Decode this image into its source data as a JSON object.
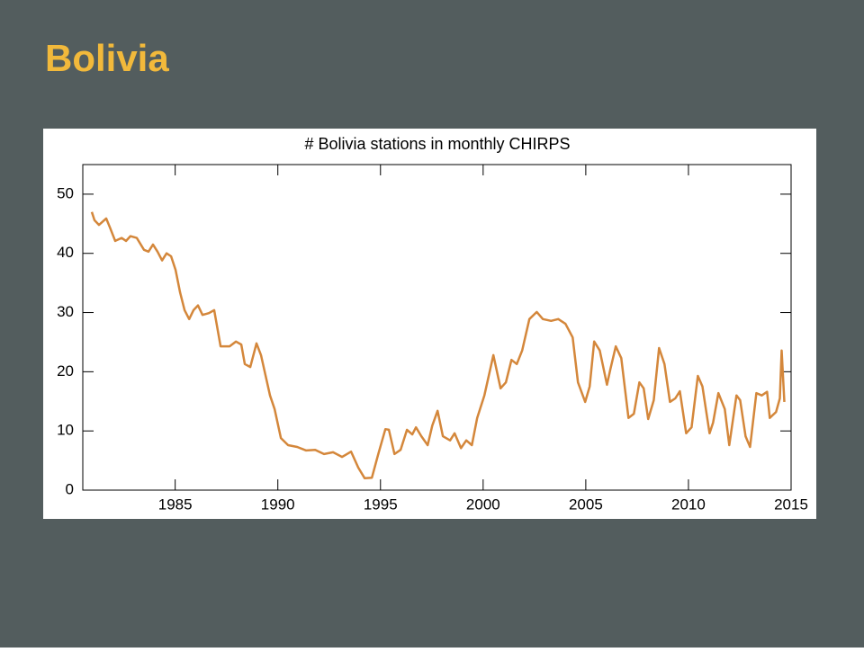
{
  "page_title": "Bolivia",
  "chart_data": {
    "type": "line",
    "title": "# Bolivia stations in monthly CHIRPS",
    "xlim": [
      1980.5,
      2015
    ],
    "xticks": [
      1985,
      1990,
      1995,
      2000,
      2005,
      2010,
      2015
    ],
    "ylim": [
      0,
      55
    ],
    "yticks": [
      0,
      10,
      20,
      30,
      40,
      50
    ],
    "series": [
      {
        "color": "#d4873b",
        "x": [
          1980.94,
          1981.07,
          1981.29,
          1981.64,
          1981.82,
          1982.08,
          1982.39,
          1982.61,
          1982.82,
          1983.13,
          1983.48,
          1983.7,
          1983.92,
          1984.14,
          1984.36,
          1984.58,
          1984.8,
          1985.02,
          1985.24,
          1985.46,
          1985.68,
          1985.89,
          1986.11,
          1986.33,
          1986.64,
          1986.9,
          1987.21,
          1987.65,
          1987.96,
          1988.22,
          1988.39,
          1988.66,
          1988.96,
          1989.18,
          1989.62,
          1989.84,
          1990.15,
          1990.5,
          1990.94,
          1991.38,
          1991.82,
          1992.25,
          1992.69,
          1993.13,
          1993.57,
          1993.92,
          1994.23,
          1994.58,
          1994.89,
          1995.24,
          1995.41,
          1995.68,
          1995.98,
          1996.29,
          1996.55,
          1996.73,
          1996.99,
          1997.3,
          1997.52,
          1997.78,
          1998.04,
          1998.39,
          1998.61,
          1998.92,
          1999.18,
          1999.45,
          1999.71,
          2000.06,
          2000.5,
          2000.85,
          2001.11,
          2001.38,
          2001.64,
          2001.9,
          2002.25,
          2002.61,
          2002.91,
          2003.31,
          2003.66,
          2004.01,
          2004.36,
          2004.62,
          2004.97,
          2005.19,
          2005.41,
          2005.68,
          2006.03,
          2006.2,
          2006.46,
          2006.73,
          2007.08,
          2007.34,
          2007.61,
          2007.82,
          2008.04,
          2008.31,
          2008.57,
          2008.83,
          2009.1,
          2009.36,
          2009.58,
          2009.89,
          2010.15,
          2010.46,
          2010.68,
          2011.03,
          2011.2,
          2011.46,
          2011.77,
          2011.99,
          2012.34,
          2012.52,
          2012.78,
          2013.0,
          2013.31,
          2013.57,
          2013.83,
          2013.96,
          2014.27,
          2014.45,
          2014.54,
          2014.67
        ],
        "values": [
          47,
          45.6,
          44.8,
          45.9,
          44.4,
          42.1,
          42.6,
          42.1,
          42.9,
          42.6,
          40.6,
          40.3,
          41.5,
          40.3,
          38.8,
          40.0,
          39.5,
          37.2,
          33.4,
          30.4,
          28.9,
          30.4,
          31.2,
          29.6,
          29.9,
          30.4,
          24.3,
          24.3,
          25.1,
          24.6,
          21.3,
          20.8,
          24.8,
          22.8,
          16.0,
          13.7,
          8.8,
          7.6,
          7.3,
          6.7,
          6.8,
          6.1,
          6.4,
          5.6,
          6.5,
          3.8,
          2.0,
          2.1,
          6.1,
          10.3,
          10.2,
          6.1,
          6.8,
          10.2,
          9.4,
          10.6,
          9.1,
          7.6,
          10.9,
          13.4,
          9.1,
          8.4,
          9.6,
          7.1,
          8.4,
          7.6,
          12.2,
          16.0,
          22.8,
          17.2,
          18.2,
          22.0,
          21.3,
          23.6,
          28.9,
          30.1,
          28.9,
          28.6,
          28.9,
          28.1,
          25.8,
          18.2,
          14.9,
          17.5,
          25.1,
          23.6,
          17.8,
          20.5,
          24.3,
          22.3,
          12.2,
          12.9,
          18.2,
          17.2,
          12.0,
          15.2,
          24.0,
          21.3,
          14.9,
          15.5,
          16.7,
          9.6,
          10.6,
          19.3,
          17.5,
          9.6,
          11.4,
          16.4,
          13.7,
          7.6,
          16.0,
          15.2,
          9.1,
          7.3,
          16.4,
          16.0,
          16.6,
          12.2,
          13.2,
          15.5,
          23.6,
          14.9
        ]
      }
    ]
  }
}
